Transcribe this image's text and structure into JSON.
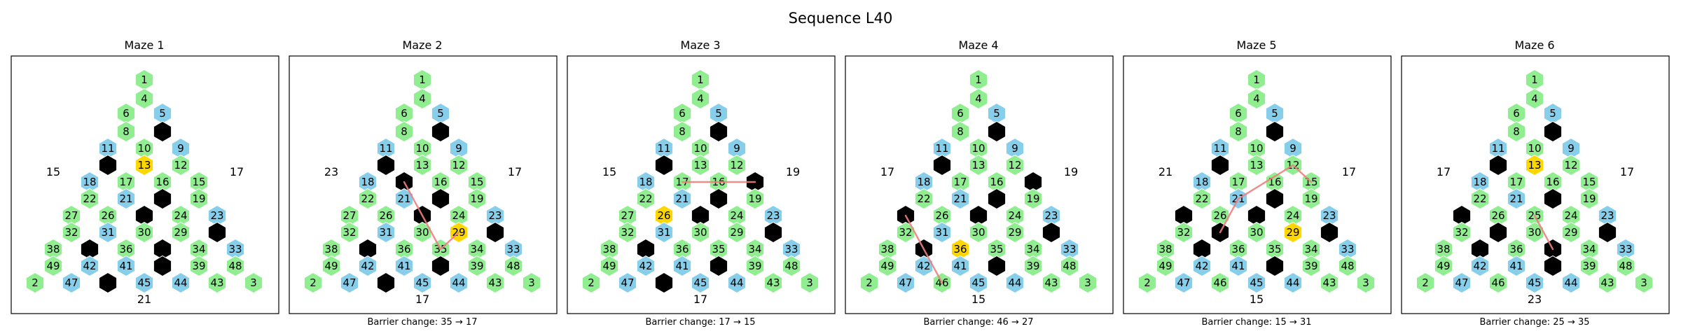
{
  "title": "Sequence L40",
  "colors": {
    "green": "#90ee90",
    "blue": "#87ceeb",
    "black": "#000000",
    "gold": "#ffd700",
    "path": "#f08080"
  },
  "panels": [
    {
      "title": "Maze 1",
      "left": "15",
      "right": "17",
      "bottom": "21",
      "caption": "",
      "black": [
        7,
        14,
        20,
        25,
        28,
        35,
        37,
        40,
        46
      ],
      "gold": [
        13
      ],
      "path": []
    },
    {
      "title": "Maze 2",
      "left": "23",
      "right": "17",
      "bottom": "17",
      "caption": "Barrier change: 35 → 17",
      "black": [
        7,
        14,
        17,
        20,
        25,
        28,
        37,
        40,
        46
      ],
      "gold": [
        29
      ],
      "path": [
        29,
        35,
        25,
        17
      ]
    },
    {
      "title": "Maze 3",
      "left": "15",
      "right": "19",
      "bottom": "17",
      "caption": "Barrier change: 17 → 15",
      "black": [
        7,
        14,
        15,
        20,
        25,
        28,
        37,
        40,
        46
      ],
      "gold": [
        26
      ],
      "path": [
        15,
        16,
        17
      ]
    },
    {
      "title": "Maze 4",
      "left": "17",
      "right": "19",
      "bottom": "15",
      "caption": "Barrier change: 46 → 27",
      "black": [
        7,
        14,
        15,
        20,
        25,
        27,
        28,
        37,
        40
      ],
      "gold": [
        36
      ],
      "path": [
        27,
        37,
        46
      ]
    },
    {
      "title": "Maze 5",
      "left": "21",
      "right": "17",
      "bottom": "15",
      "caption": "Barrier change: 15 → 31",
      "black": [
        7,
        14,
        20,
        25,
        27,
        28,
        31,
        37,
        40
      ],
      "gold": [
        29
      ],
      "path": [
        31,
        21,
        12,
        15
      ]
    },
    {
      "title": "Maze 6",
      "left": "17",
      "right": "17",
      "bottom": "23",
      "caption": "Barrier change: 25 → 35",
      "black": [
        7,
        14,
        20,
        27,
        28,
        31,
        35,
        37,
        40
      ],
      "gold": [
        13
      ],
      "path": [
        25,
        35
      ]
    }
  ],
  "cells": [
    {
      "n": 1,
      "c": "green"
    },
    {
      "n": 4,
      "c": "green"
    },
    {
      "n": 6,
      "c": "green"
    },
    {
      "n": 5,
      "c": "blue"
    },
    {
      "n": 8,
      "c": "green"
    },
    {
      "n": 7,
      "c": "green"
    },
    {
      "n": 11,
      "c": "blue"
    },
    {
      "n": 10,
      "c": "green"
    },
    {
      "n": 9,
      "c": "blue"
    },
    {
      "n": 14,
      "c": "green"
    },
    {
      "n": 13,
      "c": "green"
    },
    {
      "n": 12,
      "c": "green"
    },
    {
      "n": 18,
      "c": "blue"
    },
    {
      "n": 17,
      "c": "green"
    },
    {
      "n": 16,
      "c": "green"
    },
    {
      "n": 15,
      "c": "green"
    },
    {
      "n": 22,
      "c": "green"
    },
    {
      "n": 21,
      "c": "blue"
    },
    {
      "n": 20,
      "c": "green"
    },
    {
      "n": 19,
      "c": "green"
    },
    {
      "n": 27,
      "c": "green"
    },
    {
      "n": 26,
      "c": "green"
    },
    {
      "n": 25,
      "c": "green"
    },
    {
      "n": 24,
      "c": "green"
    },
    {
      "n": 23,
      "c": "blue"
    },
    {
      "n": 32,
      "c": "green"
    },
    {
      "n": 31,
      "c": "blue"
    },
    {
      "n": 30,
      "c": "green"
    },
    {
      "n": 29,
      "c": "green"
    },
    {
      "n": 28,
      "c": "green"
    },
    {
      "n": 38,
      "c": "green"
    },
    {
      "n": 37,
      "c": "green"
    },
    {
      "n": 36,
      "c": "green"
    },
    {
      "n": 35,
      "c": "green"
    },
    {
      "n": 34,
      "c": "green"
    },
    {
      "n": 33,
      "c": "blue"
    },
    {
      "n": 49,
      "c": "green"
    },
    {
      "n": 42,
      "c": "blue"
    },
    {
      "n": 41,
      "c": "blue"
    },
    {
      "n": 40,
      "c": "green"
    },
    {
      "n": 39,
      "c": "green"
    },
    {
      "n": 48,
      "c": "green"
    },
    {
      "n": 2,
      "c": "green"
    },
    {
      "n": 47,
      "c": "blue"
    },
    {
      "n": 46,
      "c": "green"
    },
    {
      "n": 45,
      "c": "blue"
    },
    {
      "n": 44,
      "c": "blue"
    },
    {
      "n": 43,
      "c": "green"
    },
    {
      "n": 3,
      "c": "green"
    }
  ]
}
